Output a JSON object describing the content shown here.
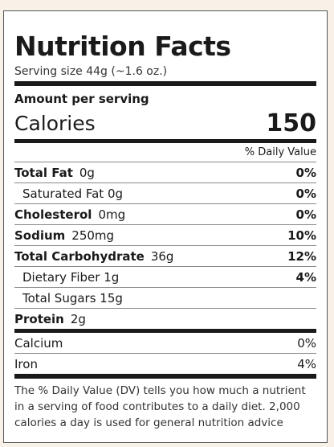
{
  "title": "Nutrition Facts",
  "serving": "Serving size 44g (~1.6 oz.)",
  "amount_per_serving": "Amount per serving",
  "calories": {
    "label": "Calories",
    "value": "150"
  },
  "dv_header": "% Daily Value",
  "nutrients": [
    {
      "name": "Total Fat",
      "amount": "0g",
      "dv": "0%"
    },
    {
      "name": "Saturated Fat 0g",
      "amount": "",
      "dv": "0%"
    },
    {
      "name": "Cholesterol",
      "amount": "0mg",
      "dv": "0%"
    },
    {
      "name": "Sodium",
      "amount": "250mg",
      "dv": "10%"
    },
    {
      "name": "Total Carbohydrate",
      "amount": "36g",
      "dv": "12%"
    },
    {
      "name": "Dietary Fiber 1g",
      "amount": "",
      "dv": "4%"
    },
    {
      "name": "Total Sugars 15g",
      "amount": "",
      "dv": ""
    },
    {
      "name": "Protein",
      "amount": "2g",
      "dv": ""
    }
  ],
  "minerals": [
    {
      "name": "Calcium",
      "dv": "0%"
    },
    {
      "name": "Iron",
      "dv": "4%"
    }
  ],
  "footnote": "The % Daily Value (DV) tells you how much a nutrient in a serving of food contributes to a daily diet. 2,000 calories a day is used for general nutrition advice"
}
